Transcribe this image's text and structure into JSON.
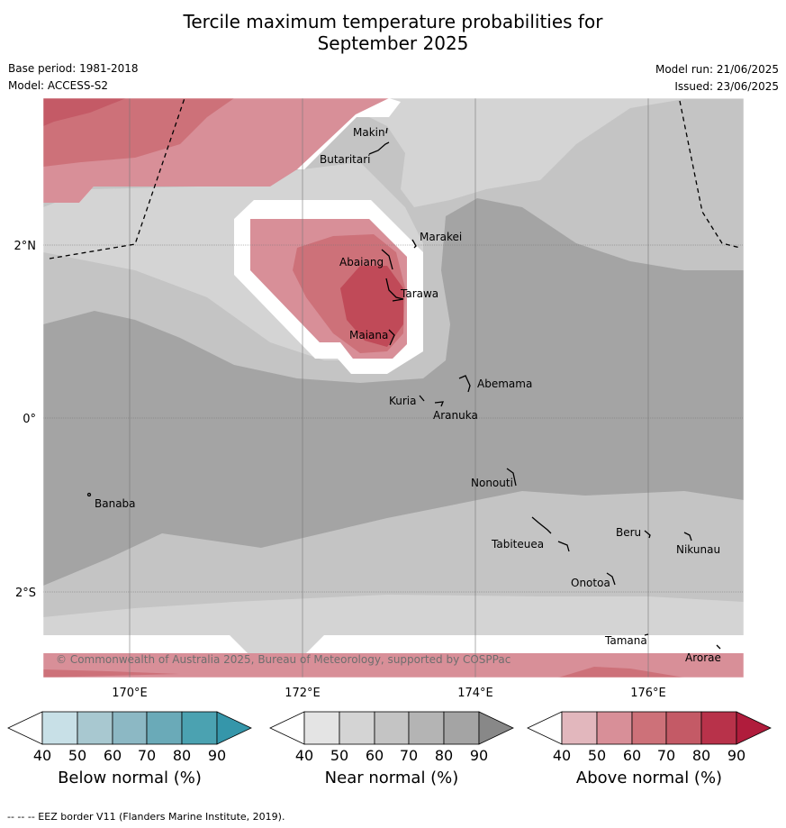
{
  "title_line1": "Tercile maximum temperature probabilities for",
  "title_line2": "September 2025",
  "base_period": "Base period: 1981-2018",
  "model": "Model: ACCESS-S2",
  "model_run": "Model run: 21/06/2025",
  "issued": "Issued: 23/06/2025",
  "map": {
    "lon_labels": [
      "170°E",
      "172°E",
      "174°E",
      "176°E"
    ],
    "lat_labels": [
      "2°N",
      "0°",
      "2°S"
    ],
    "places": [
      "Makin",
      "Butaritari",
      "Marakei",
      "Abaiang",
      "Tarawa",
      "Maiana",
      "Abemama",
      "Kuria",
      "Aranuka",
      "Nonouti",
      "Banaba",
      "Beru",
      "Nikunau",
      "Tabiteuea",
      "Onotoa",
      "Tamana",
      "Arorae"
    ],
    "copyright": "© Commonwealth of Australia 2025, Bureau of Meteorology, supported by COSPPac"
  },
  "colorbars": [
    {
      "label": "Below normal (%)",
      "ticks": [
        "40",
        "50",
        "60",
        "70",
        "80",
        "90"
      ],
      "colors": [
        "#ffffff",
        "#c8e0e7",
        "#a8c8d0",
        "#8cb8c4",
        "#6aaab8",
        "#4ba2b1",
        "#3596aa"
      ]
    },
    {
      "label": "Near normal (%)",
      "ticks": [
        "40",
        "50",
        "60",
        "70",
        "80",
        "90"
      ],
      "colors": [
        "#ffffff",
        "#e4e4e4",
        "#d4d4d4",
        "#c4c4c4",
        "#b4b4b4",
        "#a4a4a4",
        "#888888"
      ]
    },
    {
      "label": "Above normal (%)",
      "ticks": [
        "40",
        "50",
        "60",
        "70",
        "80",
        "90"
      ],
      "colors": [
        "#ffffff",
        "#e2b7bd",
        "#d88f98",
        "#cd7179",
        "#c45a66",
        "#b8324a",
        "#b01c3c"
      ]
    }
  ],
  "footer": "-- -- -- EEZ border V11 (Flanders Marine Institute, 2019)."
}
